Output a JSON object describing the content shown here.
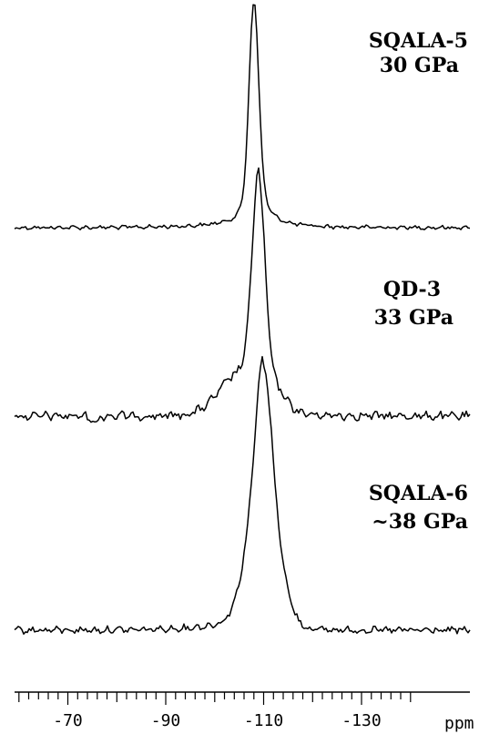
{
  "chart_data": {
    "type": "line",
    "title": "",
    "xlabel": "ppm",
    "ylabel": "",
    "xlim": [
      -60,
      -140
    ],
    "x_axis_reversed": true,
    "grid": false,
    "legend": "none",
    "x_ticks": [
      -70,
      -90,
      -110,
      -130
    ],
    "x_tick_labels": [
      "-70",
      "-90",
      "-110",
      "-130"
    ],
    "tick_unit_label": "ppm",
    "minor_tick_interval": 2,
    "line_color": "#000000",
    "stacked_vertical": true,
    "series": [
      {
        "label_lines": [
          "SQALA-5",
          "30 GPa"
        ],
        "peak_ppm": -108,
        "relative_peak_height": 1.0,
        "peak_width_ppm": 3,
        "broad_shoulder": "upfield tail",
        "noise_level": "low"
      },
      {
        "label_lines": [
          "QD-3",
          "33 GPa"
        ],
        "peak_ppm": -109,
        "relative_peak_height": 0.9,
        "peak_width_ppm": 4,
        "broad_shoulder": "downfield shoulder near -100",
        "noise_level": "high",
        "feature": "negative dip near -77"
      },
      {
        "label_lines": [
          "SQALA-6",
          "~38 GPa"
        ],
        "peak_ppm": -110,
        "relative_peak_height": 0.7,
        "peak_width_ppm": 8,
        "broad_shoulder": "broad base from -95 to -118",
        "noise_level": "medium"
      }
    ]
  }
}
